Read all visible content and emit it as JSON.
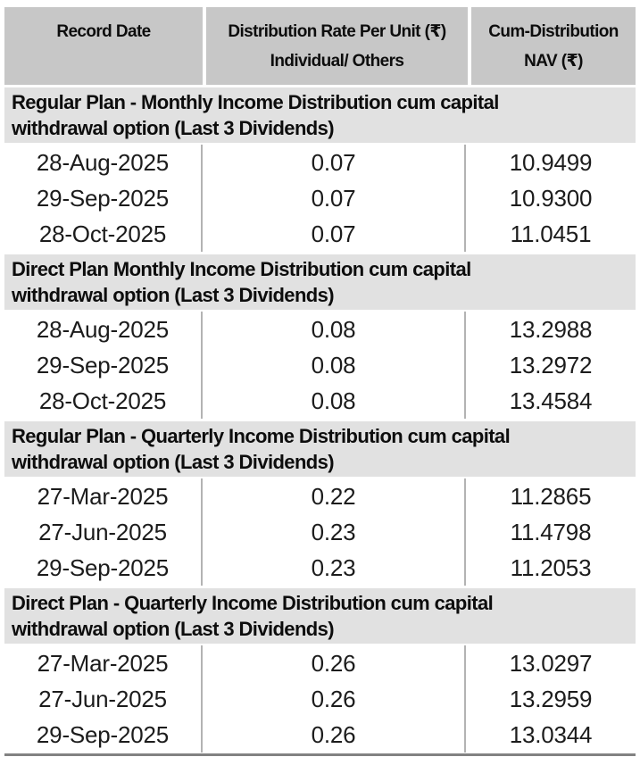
{
  "table": {
    "columns": [
      {
        "lines": [
          "Record Date",
          ""
        ]
      },
      {
        "lines": [
          "Distribution Rate Per Unit (₹)",
          "Individual/ Others"
        ]
      },
      {
        "lines": [
          "Cum-Distribution",
          "NAV (₹)"
        ]
      }
    ],
    "sections": [
      {
        "title_lines": [
          "Regular Plan - Monthly Income Distribution cum capital",
          "withdrawal option (Last 3 Dividends)"
        ],
        "rows": [
          [
            "28-Aug-2025",
            "0.07",
            "10.9499"
          ],
          [
            "29-Sep-2025",
            "0.07",
            "10.9300"
          ],
          [
            "28-Oct-2025",
            "0.07",
            "11.0451"
          ]
        ]
      },
      {
        "title_lines": [
          "Direct Plan Monthly Income Distribution cum capital",
          "withdrawal option (Last 3 Dividends)"
        ],
        "rows": [
          [
            "28-Aug-2025",
            "0.08",
            "13.2988"
          ],
          [
            "29-Sep-2025",
            "0.08",
            "13.2972"
          ],
          [
            "28-Oct-2025",
            "0.08",
            "13.4584"
          ]
        ]
      },
      {
        "title_lines": [
          "Regular Plan - Quarterly Income Distribution cum capital",
          "withdrawal option (Last 3 Dividends)"
        ],
        "rows": [
          [
            "27-Mar-2025",
            "0.22",
            "11.2865"
          ],
          [
            "27-Jun-2025",
            "0.23",
            "11.4798"
          ],
          [
            "29-Sep-2025",
            "0.23",
            "11.2053"
          ]
        ]
      },
      {
        "title_lines": [
          "Direct Plan - Quarterly Income Distribution cum capital",
          "withdrawal option (Last 3 Dividends)"
        ],
        "rows": [
          [
            "27-Mar-2025",
            "0.26",
            "13.0297"
          ],
          [
            "27-Jun-2025",
            "0.26",
            "13.2959"
          ],
          [
            "29-Sep-2025",
            "0.26",
            "13.0344"
          ]
        ]
      }
    ]
  },
  "colors": {
    "column_header_bg": "#c7c7c7",
    "section_band_bg": "#e1e1e1",
    "divider": "#b3b3b3",
    "bottom_rule": "#828282",
    "header_text": "#0d0d0d",
    "data_text": "#1c1c1c"
  }
}
